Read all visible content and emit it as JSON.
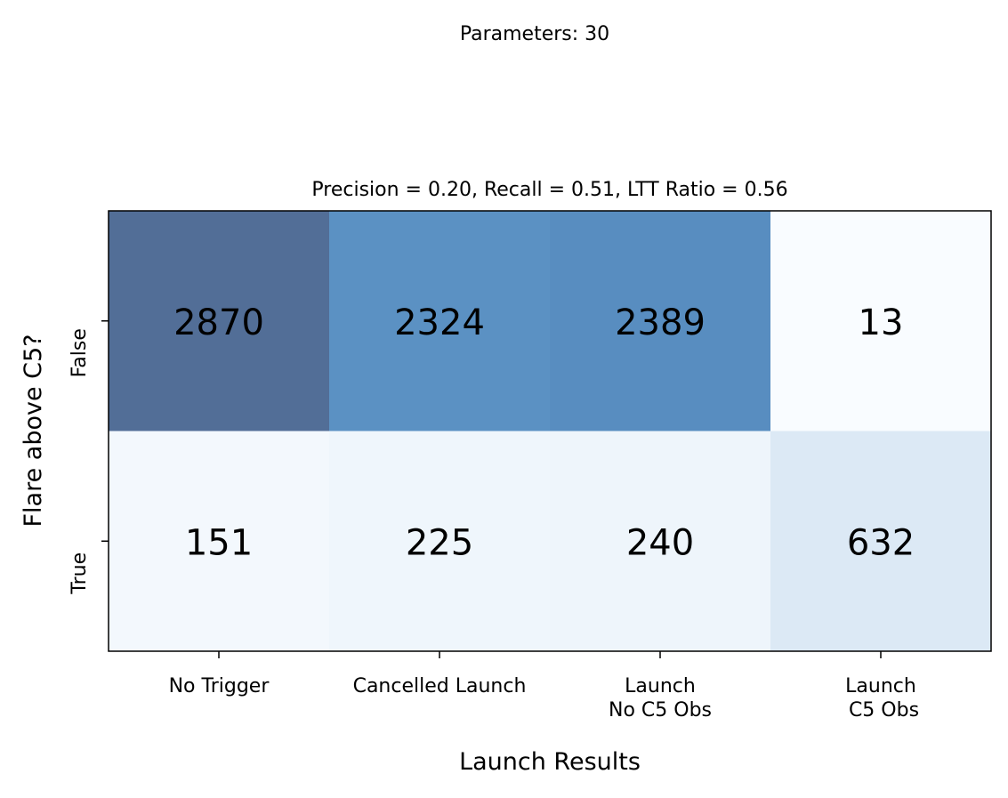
{
  "chart_data": {
    "type": "heatmap",
    "suptitle": "Parameters: 30",
    "title": "Precision = 0.20, Recall = 0.51, LTT Ratio = 0.56",
    "xlabel": "Launch Results",
    "ylabel": "Flare above C5?",
    "x_categories": [
      [
        "No Trigger"
      ],
      [
        "Cancelled Launch"
      ],
      [
        "Launch",
        "No C5 Obs"
      ],
      [
        "Launch",
        " C5 Obs"
      ]
    ],
    "y_categories": [
      "False",
      "True"
    ],
    "values": [
      [
        2870,
        2324,
        2389,
        13
      ],
      [
        151,
        225,
        240,
        632
      ]
    ],
    "colormap": "Blues",
    "colormap_stops": [
      "#f7fbff",
      "#deebf7",
      "#c6dbef",
      "#9ecae1",
      "#6baed6",
      "#4292c6",
      "#2171b5",
      "#08519c",
      "#08306b"
    ],
    "cell_alpha": 0.7,
    "grid": false,
    "legend": "none"
  }
}
